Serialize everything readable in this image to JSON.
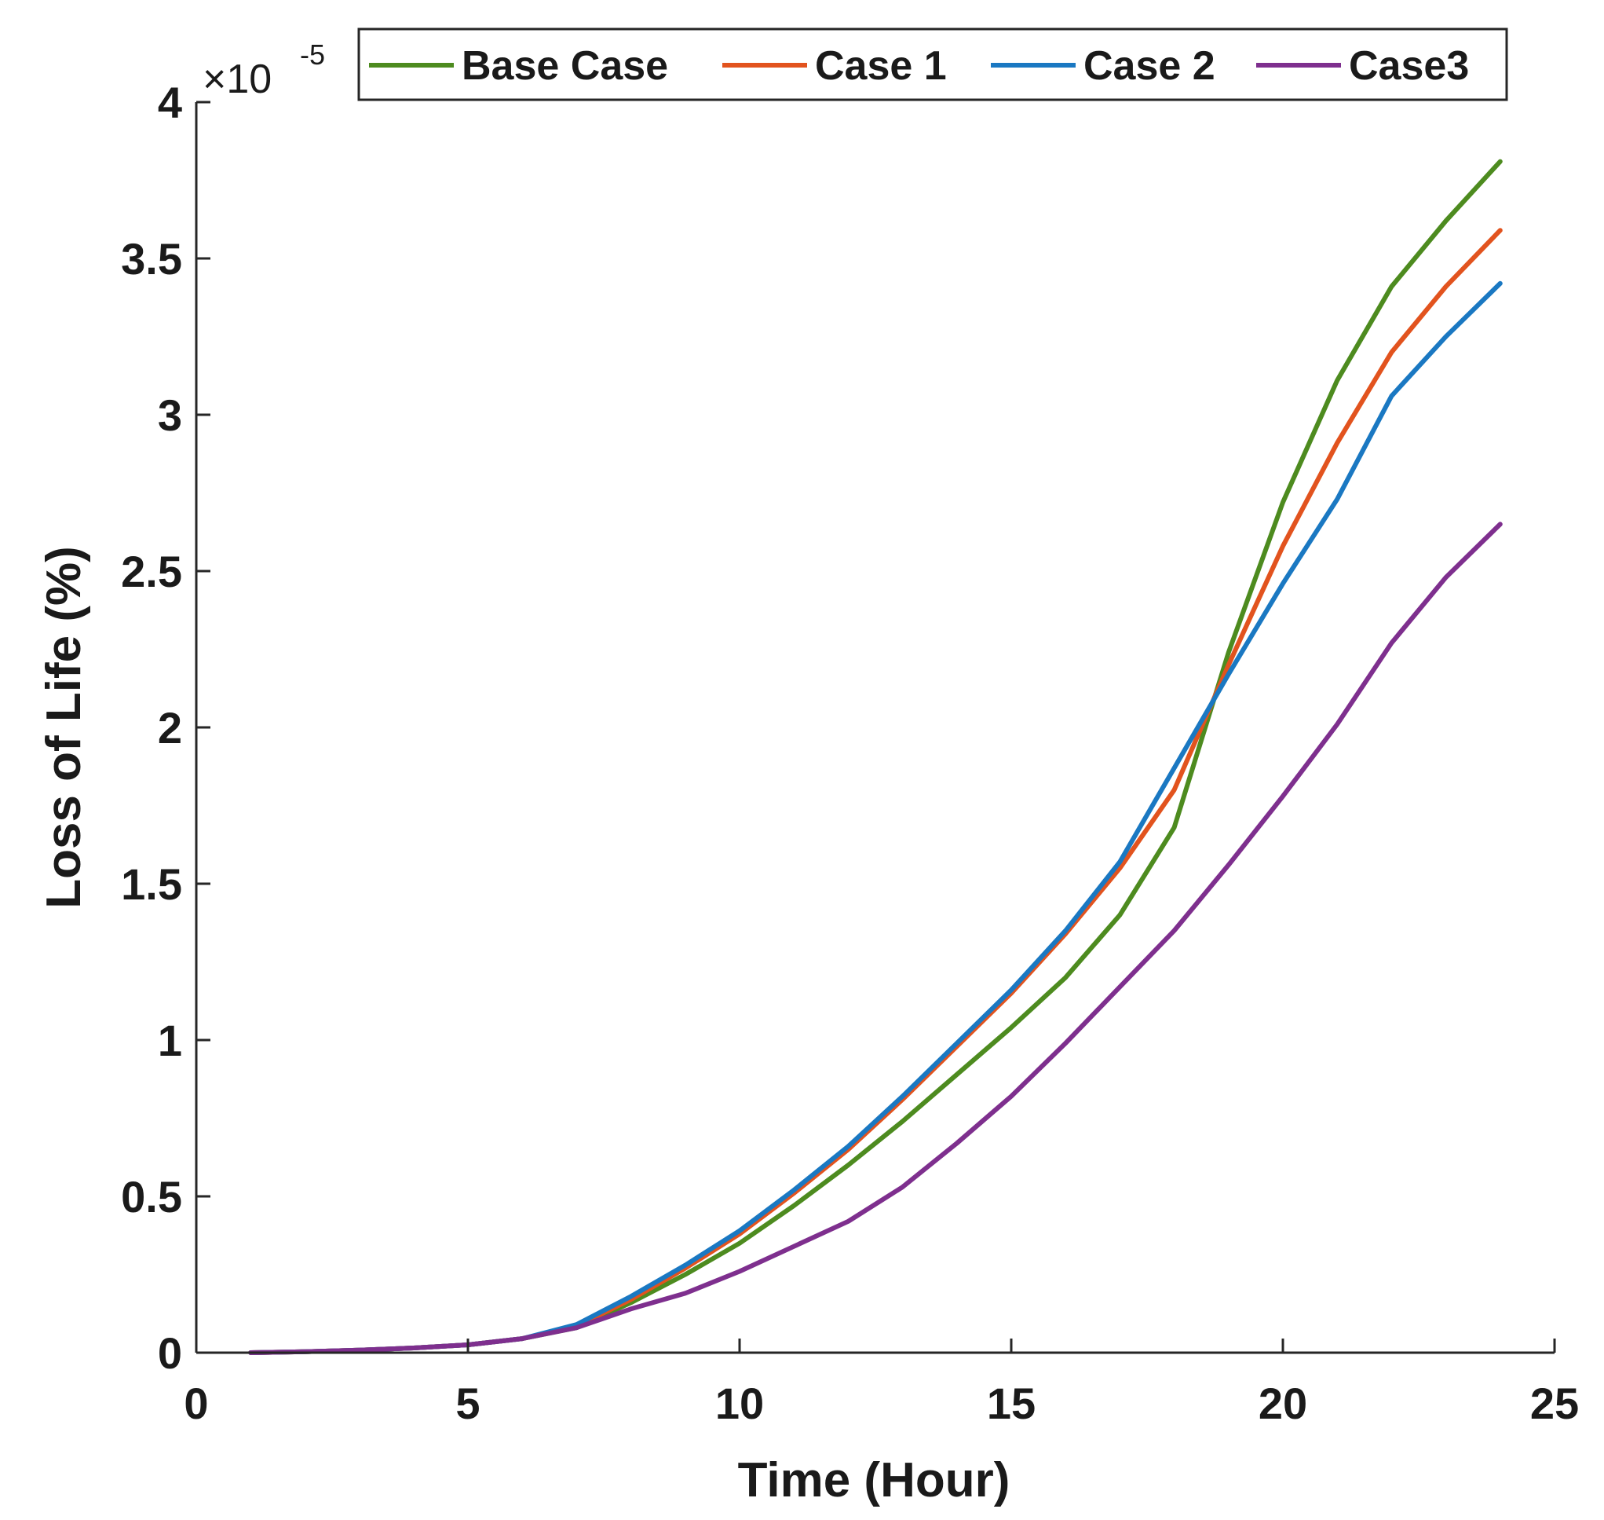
{
  "chart_data": {
    "type": "line",
    "title": "",
    "xlabel": "Time (Hour)",
    "ylabel": "Loss of Life (%)",
    "xlim": [
      0,
      25
    ],
    "ylim": [
      0,
      4
    ],
    "xticks": [
      0,
      5,
      10,
      15,
      20,
      25
    ],
    "xtick_labels": [
      "0",
      "5",
      "10",
      "15",
      "20",
      "25"
    ],
    "yticks": [
      0,
      0.5,
      1,
      1.5,
      2,
      2.5,
      3,
      3.5,
      4
    ],
    "ytick_labels": [
      "0",
      "0.5",
      "1",
      "1.5",
      "2",
      "2.5",
      "3",
      "3.5",
      "4"
    ],
    "y_multiplier": {
      "prefix": "×10",
      "exponent": "-5"
    },
    "grid": false,
    "legend_position": "top",
    "x": [
      1,
      2,
      3,
      4,
      5,
      6,
      7,
      8,
      9,
      10,
      11,
      12,
      13,
      14,
      15,
      16,
      17,
      18,
      19,
      20,
      21,
      22,
      23,
      24
    ],
    "series": [
      {
        "name": "Base Case",
        "color": "#4d8b1f",
        "values": [
          0,
          0.003,
          0.008,
          0.015,
          0.025,
          0.045,
          0.08,
          0.16,
          0.25,
          0.35,
          0.47,
          0.6,
          0.74,
          0.89,
          1.04,
          1.2,
          1.4,
          1.68,
          2.24,
          2.72,
          3.11,
          3.41,
          3.62,
          3.81
        ]
      },
      {
        "name": "Case 1",
        "color": "#e2531e",
        "values": [
          0,
          0.003,
          0.008,
          0.015,
          0.025,
          0.045,
          0.085,
          0.17,
          0.27,
          0.38,
          0.51,
          0.65,
          0.81,
          0.98,
          1.15,
          1.34,
          1.55,
          1.8,
          2.2,
          2.58,
          2.91,
          3.2,
          3.41,
          3.59
        ]
      },
      {
        "name": "Case 2",
        "color": "#1a78c2",
        "values": [
          0,
          0.003,
          0.008,
          0.015,
          0.025,
          0.045,
          0.09,
          0.18,
          0.28,
          0.39,
          0.52,
          0.66,
          0.82,
          0.99,
          1.16,
          1.35,
          1.57,
          1.87,
          2.17,
          2.46,
          2.73,
          3.06,
          3.25,
          3.42
        ]
      },
      {
        "name": "Case3",
        "color": "#7e2f8e",
        "values": [
          0,
          0.003,
          0.008,
          0.015,
          0.025,
          0.045,
          0.08,
          0.14,
          0.19,
          0.26,
          0.34,
          0.42,
          0.53,
          0.67,
          0.82,
          0.99,
          1.17,
          1.35,
          1.56,
          1.78,
          2.01,
          2.27,
          2.48,
          2.65
        ]
      }
    ]
  }
}
